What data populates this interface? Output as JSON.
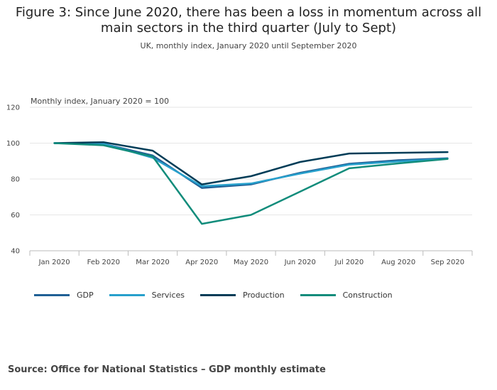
{
  "title": "Figure 3: Since June 2020, there has been a loss in momentum across all main sectors in the third quarter (July to Sept)",
  "subtitle": "UK, monthly index, January 2020 until September 2020",
  "source": "Source: Office for National Statistics – GDP monthly estimate",
  "chart_data": {
    "type": "line",
    "title": "Figure 3: Since June 2020, there has been a loss in momentum across all main sectors in the third quarter (July to Sept)",
    "subtitle": "UK, monthly index, January 2020 until September 2020",
    "ylabel": "Monthly index, January 2020 = 100",
    "xlabel": "",
    "categories": [
      "Jan 2020",
      "Feb 2020",
      "Mar 2020",
      "Apr 2020",
      "May 2020",
      "Jun 2020",
      "Jul 2020",
      "Aug 2020",
      "Sep 2020"
    ],
    "ylim": [
      40,
      120
    ],
    "yticks": [
      40,
      60,
      80,
      100,
      120
    ],
    "grid": true,
    "legend_position": "bottom-left",
    "series": [
      {
        "name": "GDP",
        "color": "#206095",
        "values": [
          100,
          99.6,
          93.1,
          75.0,
          77.0,
          83.5,
          88.5,
          90.5,
          91.6
        ]
      },
      {
        "name": "Services",
        "color": "#27a0cc",
        "values": [
          100,
          99.7,
          91.8,
          76.0,
          77.5,
          83.0,
          88.0,
          89.8,
          91.3
        ]
      },
      {
        "name": "Production",
        "color": "#003c57",
        "values": [
          100,
          100.5,
          95.8,
          77.0,
          81.6,
          89.5,
          94.2,
          94.6,
          95.0
        ]
      },
      {
        "name": "Construction",
        "color": "#118c7b",
        "values": [
          100,
          98.8,
          92.5,
          55.0,
          60.0,
          73.0,
          86.0,
          88.7,
          91.2
        ]
      }
    ]
  }
}
